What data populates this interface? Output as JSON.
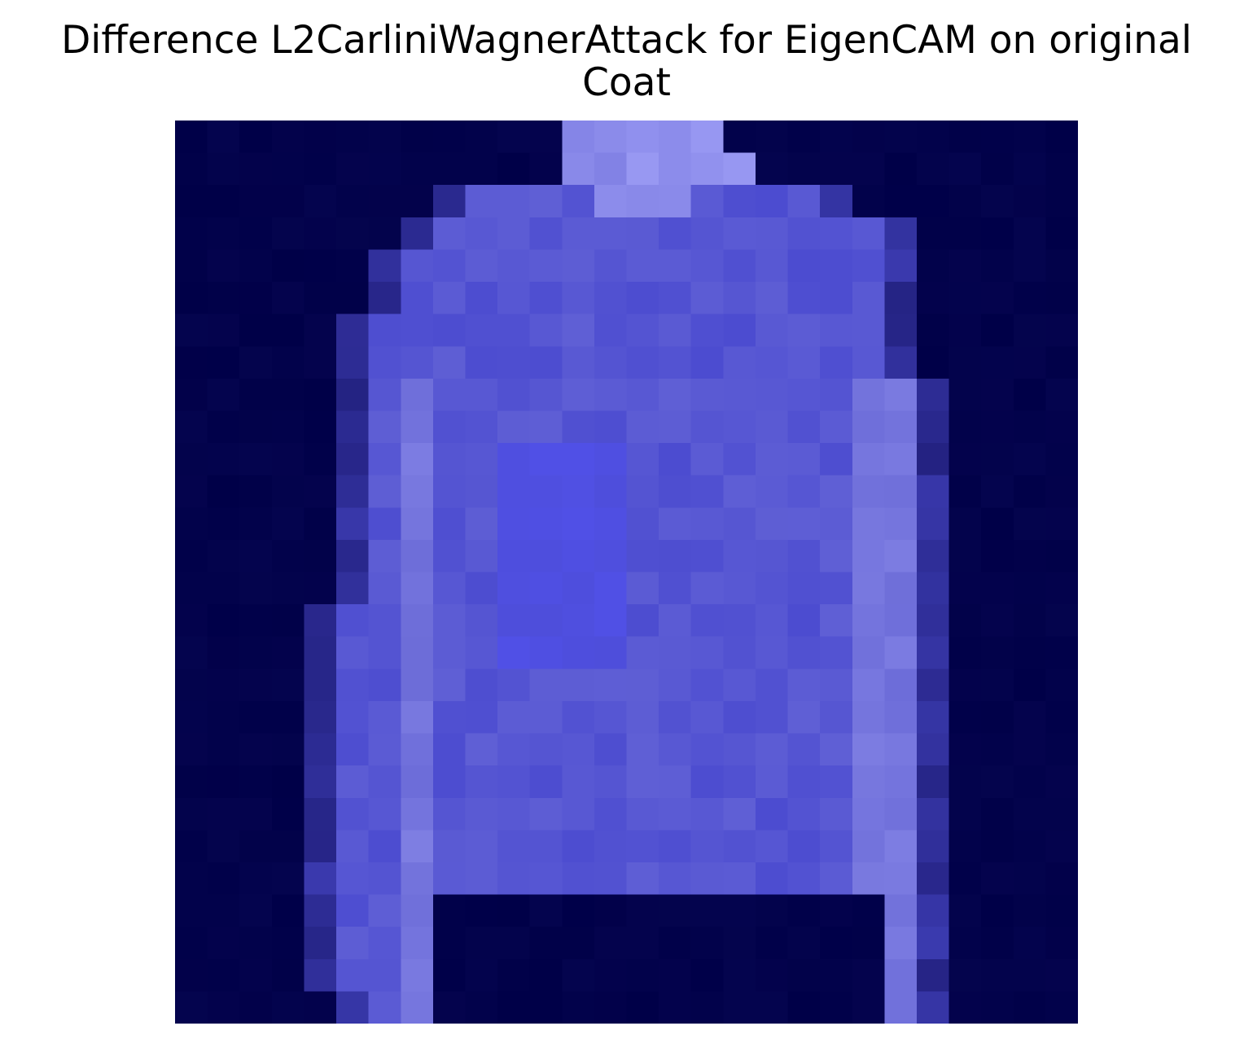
{
  "figure": {
    "title_line_1": "Difference L2CarliniWagnerAttack for EigenCAM on original",
    "title_line_2": "Coat"
  },
  "image": {
    "subject": "coat",
    "grid_cols": 28,
    "grid_rows": 28,
    "palette": {
      "background": "#000048",
      "dark_edge": "#121060",
      "body": "#4c4cd0",
      "bright_body": "#5050e6",
      "light_body": "#6c6cd8",
      "highlight": "#9898f2"
    }
  }
}
